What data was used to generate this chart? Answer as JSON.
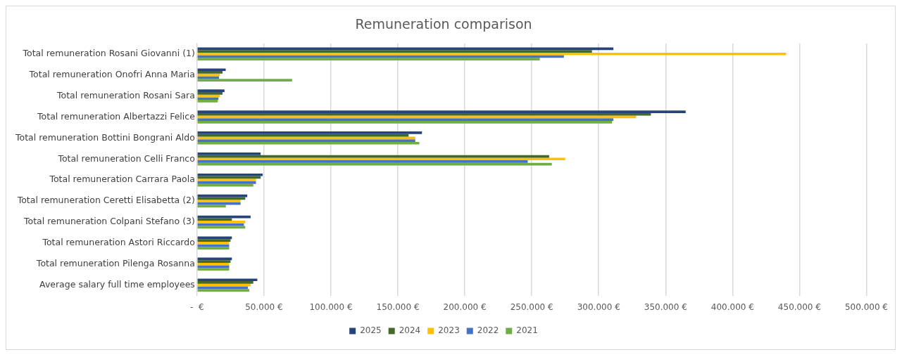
{
  "chart_data": {
    "type": "bar",
    "orientation": "horizontal",
    "title": "Remuneration comparison",
    "categories": [
      "Total remuneration Rosani Giovanni (1)",
      "Total remuneration Onofri Anna Maria",
      "Total remuneration Rosani Sara",
      "Total remuneration Albertazzi Felice",
      "Total remuneration Bottini Bongrani Aldo",
      "Total remuneration Celli Franco",
      "Total remuneration Carrara Paola",
      "Total remuneration Ceretti Elisabetta (2)",
      "Total remuneration Colpani Stefano (3)",
      "Total remuneration Astori Riccardo",
      "Total remuneration Pilenga Rosanna",
      "Average salary full time employees"
    ],
    "series": [
      {
        "name": "2025",
        "color": "#264478",
        "values": [
          311000,
          21400,
          20500,
          365000,
          168000,
          47500,
          49000,
          37500,
          40000,
          26000,
          26000,
          45000
        ]
      },
      {
        "name": "2024",
        "color": "#43682b",
        "values": [
          295000,
          19000,
          19000,
          339000,
          158000,
          263000,
          47500,
          36000,
          26000,
          25000,
          25000,
          42000
        ]
      },
      {
        "name": "2023",
        "color": "#ffc000",
        "values": [
          440000,
          17000,
          17000,
          328000,
          163000,
          275000,
          44000,
          32500,
          36000,
          24000,
          24000,
          40000
        ]
      },
      {
        "name": "2022",
        "color": "#4472c4",
        "values": [
          274000,
          16400,
          16000,
          311000,
          163000,
          247000,
          44000,
          32500,
          35000,
          24000,
          24000,
          38000
        ]
      },
      {
        "name": "2021",
        "color": "#70ad47",
        "values": [
          256000,
          71000,
          15500,
          310000,
          166000,
          265000,
          42000,
          21500,
          36000,
          24000,
          24000,
          39000
        ]
      }
    ],
    "xlim": [
      0,
      500000
    ],
    "xticks": [
      {
        "value": 0,
        "label": "-  €"
      },
      {
        "value": 50000,
        "label": "50.000 €"
      },
      {
        "value": 100000,
        "label": "100.000 €"
      },
      {
        "value": 150000,
        "label": "150.000 €"
      },
      {
        "value": 200000,
        "label": "200.000 €"
      },
      {
        "value": 250000,
        "label": "250.000 €"
      },
      {
        "value": 300000,
        "label": "300.000 €"
      },
      {
        "value": 350000,
        "label": "350.000 €"
      },
      {
        "value": 400000,
        "label": "400.000 €"
      },
      {
        "value": 450000,
        "label": "450.000 €"
      },
      {
        "value": 500000,
        "label": "500.000 €"
      }
    ],
    "grid": "x",
    "legend": "bottom"
  }
}
